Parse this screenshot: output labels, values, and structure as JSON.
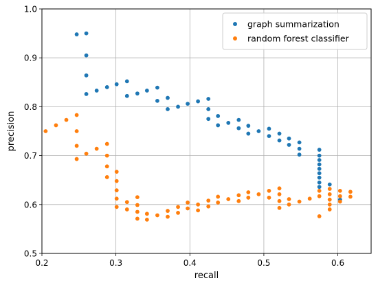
{
  "chart_data": {
    "type": "scatter",
    "title": "",
    "xlabel": "recall",
    "ylabel": "precision",
    "xlim": [
      0.2,
      0.645
    ],
    "ylim": [
      0.5,
      1.0
    ],
    "xticks": [
      0.2,
      0.3,
      0.4,
      0.5,
      0.6
    ],
    "xtick_labels": [
      "0.2",
      "0.3",
      "0.4",
      "0.5",
      "0.6"
    ],
    "yticks": [
      0.5,
      0.6,
      0.7,
      0.8,
      0.9,
      1.0
    ],
    "ytick_labels": [
      "0.5",
      "0.6",
      "0.7",
      "0.8",
      "0.9",
      "1.0"
    ],
    "grid": true,
    "legend_position": "top-right",
    "series": [
      {
        "name": "graph summarization",
        "color": "#1f77b4",
        "points": [
          [
            0.247,
            0.948
          ],
          [
            0.26,
            0.95
          ],
          [
            0.26,
            0.905
          ],
          [
            0.26,
            0.864
          ],
          [
            0.26,
            0.826
          ],
          [
            0.274,
            0.833
          ],
          [
            0.288,
            0.84
          ],
          [
            0.301,
            0.846
          ],
          [
            0.315,
            0.852
          ],
          [
            0.315,
            0.822
          ],
          [
            0.329,
            0.827
          ],
          [
            0.342,
            0.833
          ],
          [
            0.356,
            0.839
          ],
          [
            0.356,
            0.812
          ],
          [
            0.37,
            0.818
          ],
          [
            0.37,
            0.795
          ],
          [
            0.384,
            0.8
          ],
          [
            0.397,
            0.806
          ],
          [
            0.411,
            0.811
          ],
          [
            0.425,
            0.816
          ],
          [
            0.425,
            0.795
          ],
          [
            0.425,
            0.775
          ],
          [
            0.438,
            0.781
          ],
          [
            0.438,
            0.762
          ],
          [
            0.452,
            0.767
          ],
          [
            0.466,
            0.773
          ],
          [
            0.466,
            0.756
          ],
          [
            0.479,
            0.761
          ],
          [
            0.479,
            0.745
          ],
          [
            0.493,
            0.75
          ],
          [
            0.507,
            0.755
          ],
          [
            0.507,
            0.74
          ],
          [
            0.521,
            0.745
          ],
          [
            0.521,
            0.731
          ],
          [
            0.534,
            0.735
          ],
          [
            0.534,
            0.722
          ],
          [
            0.548,
            0.727
          ],
          [
            0.548,
            0.714
          ],
          [
            0.548,
            0.702
          ],
          [
            0.575,
            0.712
          ],
          [
            0.575,
            0.7
          ],
          [
            0.575,
            0.691
          ],
          [
            0.575,
            0.682
          ],
          [
            0.575,
            0.673
          ],
          [
            0.575,
            0.664
          ],
          [
            0.575,
            0.655
          ],
          [
            0.575,
            0.645
          ],
          [
            0.575,
            0.636
          ],
          [
            0.589,
            0.641
          ],
          [
            0.603,
            0.61
          ]
        ]
      },
      {
        "name": "random forest classifier",
        "color": "#ff7f0e",
        "points": [
          [
            0.205,
            0.75
          ],
          [
            0.219,
            0.762
          ],
          [
            0.233,
            0.773
          ],
          [
            0.247,
            0.783
          ],
          [
            0.247,
            0.75
          ],
          [
            0.247,
            0.72
          ],
          [
            0.247,
            0.693
          ],
          [
            0.26,
            0.704
          ],
          [
            0.274,
            0.714
          ],
          [
            0.288,
            0.724
          ],
          [
            0.288,
            0.7
          ],
          [
            0.288,
            0.678
          ],
          [
            0.288,
            0.656
          ],
          [
            0.301,
            0.667
          ],
          [
            0.301,
            0.648
          ],
          [
            0.301,
            0.629
          ],
          [
            0.301,
            0.612
          ],
          [
            0.301,
            0.595
          ],
          [
            0.315,
            0.605
          ],
          [
            0.315,
            0.59
          ],
          [
            0.329,
            0.615
          ],
          [
            0.329,
            0.599
          ],
          [
            0.329,
            0.585
          ],
          [
            0.329,
            0.571
          ],
          [
            0.342,
            0.581
          ],
          [
            0.342,
            0.569
          ],
          [
            0.356,
            0.578
          ],
          [
            0.37,
            0.587
          ],
          [
            0.37,
            0.575
          ],
          [
            0.384,
            0.583
          ],
          [
            0.384,
            0.595
          ],
          [
            0.397,
            0.604
          ],
          [
            0.397,
            0.592
          ],
          [
            0.411,
            0.6
          ],
          [
            0.411,
            0.588
          ],
          [
            0.425,
            0.608
          ],
          [
            0.425,
            0.596
          ],
          [
            0.438,
            0.616
          ],
          [
            0.438,
            0.604
          ],
          [
            0.452,
            0.611
          ],
          [
            0.466,
            0.619
          ],
          [
            0.466,
            0.607
          ],
          [
            0.479,
            0.625
          ],
          [
            0.479,
            0.614
          ],
          [
            0.493,
            0.621
          ],
          [
            0.507,
            0.628
          ],
          [
            0.507,
            0.614
          ],
          [
            0.521,
            0.633
          ],
          [
            0.521,
            0.621
          ],
          [
            0.521,
            0.607
          ],
          [
            0.521,
            0.593
          ],
          [
            0.534,
            0.611
          ],
          [
            0.534,
            0.6
          ],
          [
            0.548,
            0.606
          ],
          [
            0.562,
            0.612
          ],
          [
            0.575,
            0.628
          ],
          [
            0.575,
            0.617
          ],
          [
            0.575,
            0.576
          ],
          [
            0.589,
            0.632
          ],
          [
            0.589,
            0.621
          ],
          [
            0.589,
            0.61
          ],
          [
            0.589,
            0.6
          ],
          [
            0.589,
            0.59
          ],
          [
            0.603,
            0.628
          ],
          [
            0.603,
            0.617
          ],
          [
            0.603,
            0.606
          ],
          [
            0.617,
            0.626
          ],
          [
            0.617,
            0.616
          ]
        ]
      }
    ]
  }
}
